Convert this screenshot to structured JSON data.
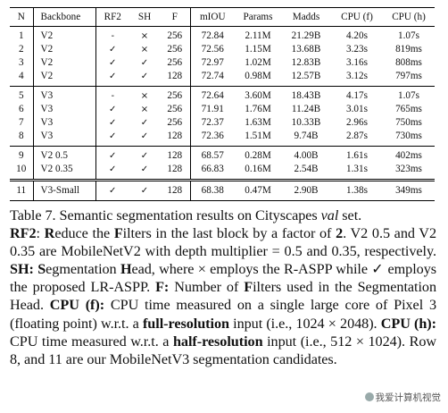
{
  "table": {
    "headers": [
      "N",
      "Backbone",
      "RF2",
      "SH",
      "F",
      "mIOU",
      "Params",
      "Madds",
      "CPU (f)",
      "CPU (h)"
    ],
    "groups": [
      [
        [
          "1",
          "V2",
          "-",
          "×",
          "256",
          "72.84",
          "2.11M",
          "21.29B",
          "4.20s",
          "1.07s"
        ],
        [
          "2",
          "V2",
          "✓",
          "×",
          "256",
          "72.56",
          "1.15M",
          "13.68B",
          "3.23s",
          "819ms"
        ],
        [
          "3",
          "V2",
          "✓",
          "✓",
          "256",
          "72.97",
          "1.02M",
          "12.83B",
          "3.16s",
          "808ms"
        ],
        [
          "4",
          "V2",
          "✓",
          "✓",
          "128",
          "72.74",
          "0.98M",
          "12.57B",
          "3.12s",
          "797ms"
        ]
      ],
      [
        [
          "5",
          "V3",
          "-",
          "×",
          "256",
          "72.64",
          "3.60M",
          "18.43B",
          "4.17s",
          "1.07s"
        ],
        [
          "6",
          "V3",
          "✓",
          "×",
          "256",
          "71.91",
          "1.76M",
          "11.24B",
          "3.01s",
          "765ms"
        ],
        [
          "7",
          "V3",
          "✓",
          "✓",
          "256",
          "72.37",
          "1.63M",
          "10.33B",
          "2.96s",
          "750ms"
        ],
        [
          "8",
          "V3",
          "✓",
          "✓",
          "128",
          "72.36",
          "1.51M",
          "9.74B",
          "2.87s",
          "730ms"
        ]
      ],
      [
        [
          "9",
          "V2 0.5",
          "✓",
          "✓",
          "128",
          "68.57",
          "0.28M",
          "4.00B",
          "1.61s",
          "402ms"
        ],
        [
          "10",
          "V2 0.35",
          "✓",
          "✓",
          "128",
          "66.83",
          "0.16M",
          "2.54B",
          "1.31s",
          "323ms"
        ]
      ],
      [
        [
          "11",
          "V3-Small",
          "✓",
          "✓",
          "128",
          "68.38",
          "0.47M",
          "2.90B",
          "1.38s",
          "349ms"
        ]
      ]
    ]
  },
  "caption": {
    "p1": "Table 7. Semantic segmentation results on Cityscapes ",
    "p1_val": "val",
    "p1_end": " set.",
    "rf2_label": "RF2",
    "p2": ": ",
    "rf2_r": "R",
    "p3": "educe the ",
    "rf2_f": "F",
    "p4": "ilters in the last block by a factor of ",
    "rf2_2": "2",
    "p5": ". V2 0.5 and V2 0.35 are MobileNetV2 with depth multiplier = 0.5 and 0.35, respectively. ",
    "sh_label": "SH:",
    "p6": " ",
    "sh_s": "S",
    "p7": "egmentation ",
    "sh_h": "H",
    "p8": "ead, where × employs the R-ASPP while ✓ employs the proposed LR-ASPP. ",
    "f_label": "F:",
    "p9": " Number of ",
    "f_f": "F",
    "p10": "ilters used in the Segmentation Head. ",
    "cpuf_label": "CPU (f):",
    "p11": " CPU time measured on a single large core of Pixel 3 (floating point) w.r.t. a ",
    "fullres": "full-resolution",
    "p12": " input (i.e., 1024 × 2048). ",
    "cpuh_label": "CPU (h):",
    "p13": " CPU time measured w.r.t. a ",
    "halfres": "half-resolution",
    "p14": " input (i.e., 512 × 1024). Row 8, and 11 are our MobileNetV3 segmentation candidates."
  },
  "watermark": {
    "icon": "wechat-icon",
    "text": "我爱计算机视觉"
  }
}
